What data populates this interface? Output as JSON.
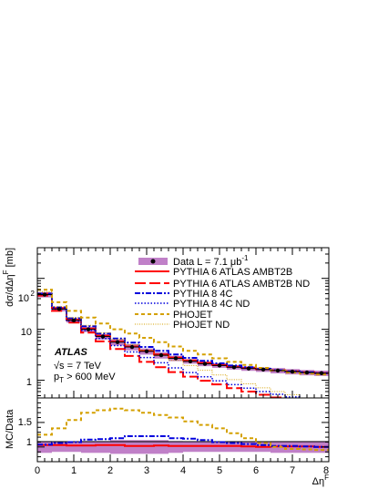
{
  "chart_data": [
    {
      "type": "line",
      "panel": "main",
      "ylabel_parts": {
        "main": "dσ/dΔη",
        "sup": "F",
        "tail": " [mb]"
      },
      "yscale": "log",
      "ylim": [
        0.45,
        400
      ],
      "xlim": [
        0,
        8
      ],
      "x_edges": [
        0,
        0.4,
        0.8,
        1.2,
        1.6,
        2.0,
        2.4,
        2.8,
        3.2,
        3.6,
        4.0,
        4.4,
        4.8,
        5.2,
        5.6,
        6.0,
        6.4,
        6.8,
        7.2,
        7.6,
        8.0
      ],
      "y_tick_labels": [
        {
          "value": 1,
          "label": "1"
        },
        {
          "value": 10,
          "label": "10"
        },
        {
          "value": 100,
          "label": "10",
          "sup": "2"
        }
      ],
      "annotations": {
        "experiment": "ATLAS",
        "energy": "√s = 7 TeV",
        "pt_main": "p",
        "pt_sub": "T",
        "pt_tail": " > 600 MeV"
      },
      "series": [
        {
          "name_main": "Data L = 7.1 μb",
          "name_sup": "-1",
          "style": "data",
          "color": "#000000",
          "band_color": "#c080c8",
          "values": [
            48,
            25,
            15,
            10,
            7.2,
            5.6,
            4.5,
            3.7,
            3.1,
            2.7,
            2.35,
            2.1,
            1.95,
            1.8,
            1.7,
            1.62,
            1.55,
            1.48,
            1.42,
            1.38
          ]
        },
        {
          "name": "PYTHIA 6 ATLAS AMBT2B",
          "style": "solid",
          "color": "#ff0000",
          "values": [
            50,
            26,
            15.5,
            10.3,
            7.5,
            5.8,
            4.6,
            3.8,
            3.2,
            2.8,
            2.45,
            2.2,
            2.0,
            1.85,
            1.75,
            1.65,
            1.57,
            1.5,
            1.44,
            1.38
          ]
        },
        {
          "name": "PYTHIA 6 ATLAS AMBT2B ND",
          "style": "longdash",
          "color": "#ff0000",
          "values": [
            46,
            23,
            13.5,
            8.6,
            5.8,
            4.1,
            3.0,
            2.3,
            1.8,
            1.45,
            1.18,
            0.98,
            0.83,
            0.7,
            0.6,
            0.52,
            0.46,
            0.41,
            0.37,
            0.34
          ]
        },
        {
          "name": "PYTHIA 8 4C",
          "style": "dashdot",
          "color": "#0000dd",
          "values": [
            50,
            27,
            16.5,
            11.5,
            8.3,
            6.6,
            5.5,
            4.5,
            3.8,
            3.2,
            2.75,
            2.4,
            2.15,
            1.95,
            1.8,
            1.68,
            1.58,
            1.5,
            1.44,
            1.38
          ]
        },
        {
          "name": "PYTHIA 8 4C ND",
          "style": "dotted",
          "color": "#0000dd",
          "values": [
            48,
            25,
            14.5,
            9.5,
            6.6,
            4.8,
            3.6,
            2.8,
            2.2,
            1.75,
            1.42,
            1.17,
            0.97,
            0.82,
            0.7,
            0.6,
            0.53,
            0.47,
            0.42,
            0.38
          ]
        },
        {
          "name": "PHOJET",
          "style": "dashed",
          "color": "#d4a000",
          "values": [
            60,
            34,
            23,
            17,
            13,
            10,
            8.3,
            6.8,
            5.6,
            4.6,
            3.8,
            3.2,
            2.7,
            2.3,
            2.0,
            1.75,
            1.55,
            1.42,
            1.35,
            1.3
          ]
        },
        {
          "name": "PHOJET ND",
          "style": "finedot",
          "color": "#d4a000",
          "values": [
            55,
            28,
            17,
            12,
            8.5,
            6.4,
            5.0,
            3.9,
            3.05,
            2.45,
            1.95,
            1.57,
            1.27,
            1.03,
            0.85,
            0.71,
            0.6,
            0.52,
            0.45,
            0.4
          ]
        }
      ]
    },
    {
      "type": "line",
      "panel": "ratio",
      "ylabel": "MC/Data",
      "xlabel_parts": {
        "main": "Δη",
        "sup": "F"
      },
      "ylim": [
        0.7,
        2.0
      ],
      "xlim": [
        0,
        8
      ],
      "x_ticks": [
        0,
        1,
        2,
        3,
        4,
        5,
        6,
        7,
        8
      ],
      "x_tick_labels": [
        "0",
        "1",
        "2",
        "3",
        "4",
        "5",
        "6",
        "7",
        "8"
      ],
      "y_ticks": [
        1,
        1.5
      ],
      "y_tick_labels": [
        "1",
        "1.5"
      ],
      "band_values": [
        0.12,
        0.1,
        0.1,
        0.12,
        0.12,
        0.14,
        0.14,
        0.14,
        0.14,
        0.12,
        0.1,
        0.1,
        0.1,
        0.1,
        0.1,
        0.1,
        0.12,
        0.12,
        0.12,
        0.12
      ],
      "series": [
        {
          "name": "PYTHIA 6 ATLAS AMBT2B",
          "style": "solid",
          "color": "#ff0000",
          "values": [
            1.04,
            1.04,
            1.03,
            1.03,
            1.04,
            1.04,
            1.02,
            1.02,
            1.03,
            1.02,
            1.02,
            1.02,
            1.02,
            1.02,
            1.01,
            1.0,
            1.01,
            1.01,
            1.01,
            1.0
          ]
        },
        {
          "name": "PYTHIA 8 4C",
          "style": "dashdot",
          "color": "#0000dd",
          "values": [
            1.05,
            1.08,
            1.1,
            1.15,
            1.16,
            1.18,
            1.22,
            1.22,
            1.22,
            1.18,
            1.17,
            1.14,
            1.1,
            1.08,
            1.06,
            1.04,
            1.02,
            1.02,
            1.01,
            1.0
          ]
        },
        {
          "name": "PHOJET",
          "style": "dashed",
          "color": "#d4a000",
          "values": [
            1.25,
            1.38,
            1.55,
            1.7,
            1.75,
            1.78,
            1.75,
            1.7,
            1.65,
            1.6,
            1.52,
            1.45,
            1.38,
            1.28,
            1.18,
            1.08,
            1.0,
            0.96,
            0.95,
            0.94
          ]
        }
      ]
    }
  ]
}
